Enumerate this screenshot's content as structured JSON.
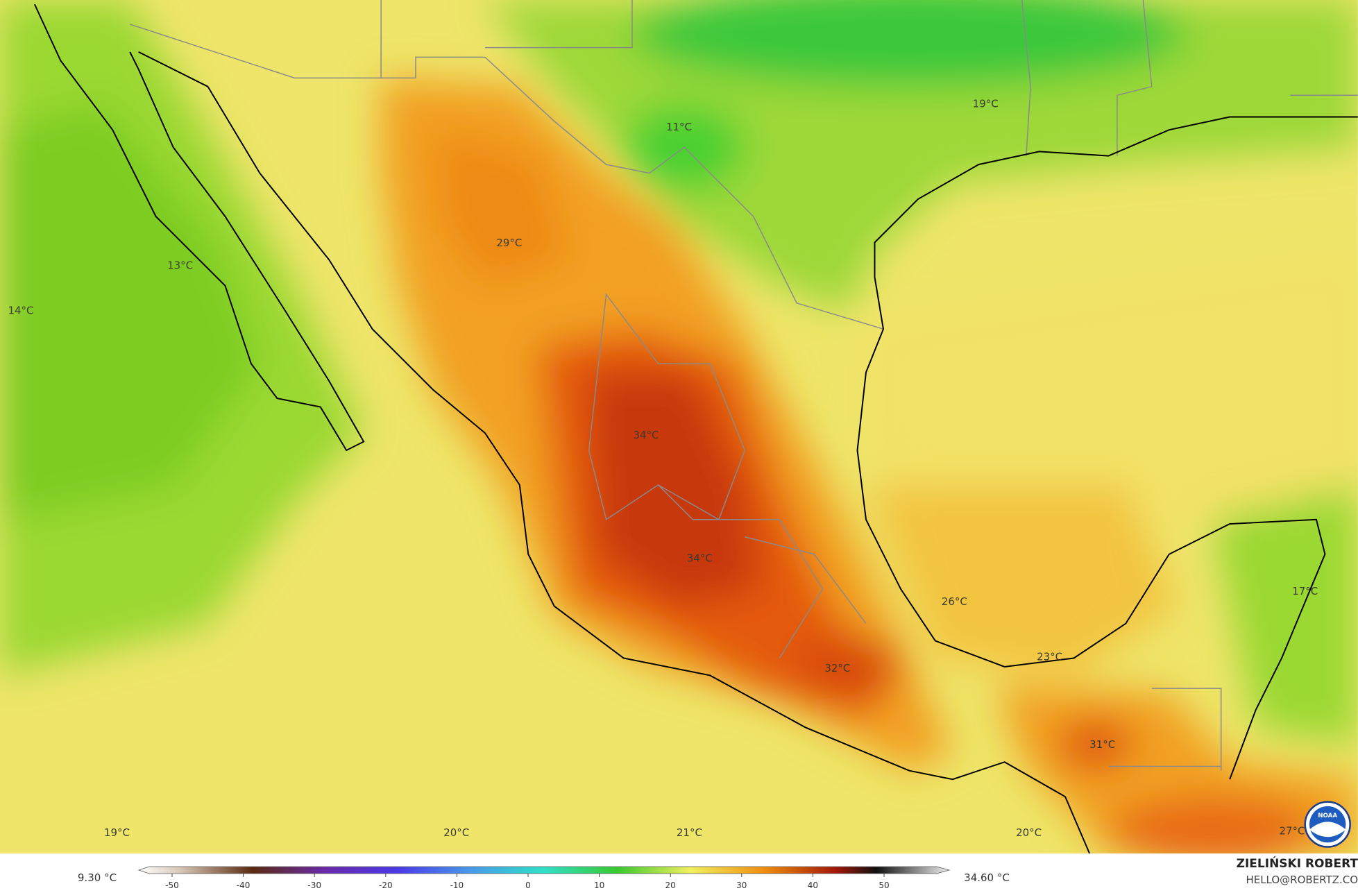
{
  "map": {
    "labels": [
      "11°C",
      "19°C",
      "29°C",
      "13°C",
      "14°C",
      "34°C",
      "34°C",
      "26°C",
      "23°C",
      "32°C",
      "31°C",
      "17°C",
      "19°C",
      "20°C",
      "21°C",
      "20°C",
      "27°C"
    ],
    "logo_text": "NOAA"
  },
  "colorbar": {
    "min_label": "9.30 °C",
    "max_label": "34.60 °C",
    "ticks": [
      -50,
      -40,
      -30,
      -20,
      -10,
      0,
      10,
      20,
      30,
      40,
      50
    ]
  },
  "credit": {
    "name": "ZIELIŃSKI ROBERT",
    "contact": "HELLO@ROBERTZ.CO"
  }
}
